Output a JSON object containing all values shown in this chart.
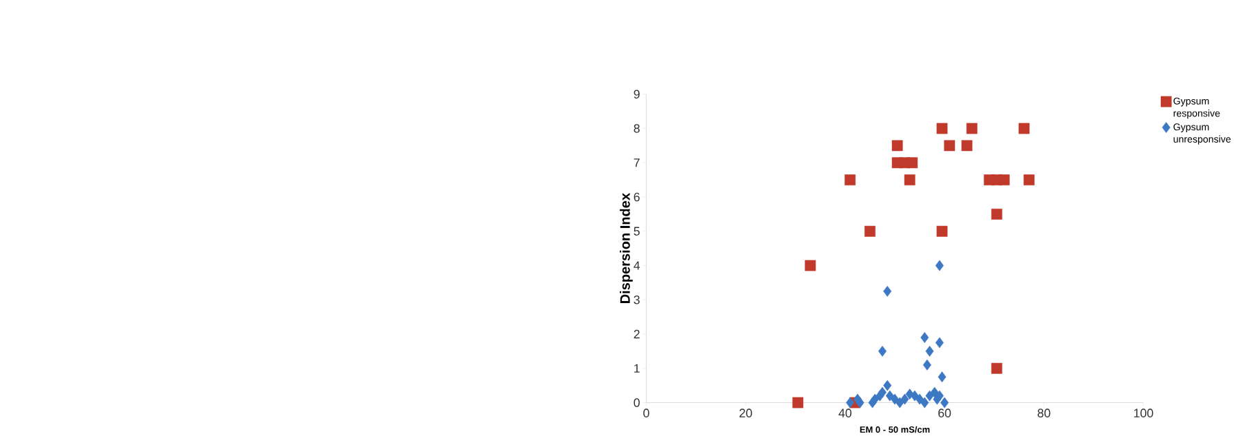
{
  "chart_data": {
    "type": "scatter",
    "xlabel": "EM 0 - 50 mS/cm",
    "ylabel": "Dispersion Index",
    "xlim": [
      0,
      100
    ],
    "xticks": [
      0,
      20,
      40,
      60,
      80,
      100
    ],
    "ylim": [
      0,
      9
    ],
    "yticks": [
      0,
      1,
      2,
      3,
      4,
      5,
      6,
      7,
      8,
      9
    ],
    "grid": false,
    "legend": "right",
    "series": [
      {
        "name": "Gypsum responsive",
        "color": "#c0392b",
        "marker": "square",
        "x": [
          30.5,
          42,
          33,
          41,
          45,
          50.5,
          50.5,
          52,
          53,
          53.5,
          59.5,
          59.5,
          61,
          64.5,
          65.5,
          69,
          70.5,
          72,
          70.5,
          70.5,
          76,
          77
        ],
        "values": [
          0,
          0,
          4,
          6.5,
          5,
          7.5,
          7,
          7,
          6.5,
          7,
          8,
          5,
          7.5,
          7.5,
          8,
          6.5,
          6.5,
          6.5,
          5.5,
          1,
          8,
          6.5
        ]
      },
      {
        "name": "Gypsum unresponsive",
        "color": "#3d78c2",
        "marker": "diamond",
        "x": [
          48.5,
          59,
          47.5,
          56,
          59,
          57,
          56.5,
          59.5,
          41,
          42.5,
          43,
          45.5,
          46,
          47,
          47.5,
          48.5,
          49,
          50,
          51,
          52,
          53,
          54,
          55,
          56,
          57,
          58,
          58.5,
          59,
          60
        ],
        "values": [
          3.25,
          4,
          1.5,
          1.9,
          1.75,
          1.5,
          1.1,
          0.75,
          0,
          0.1,
          0,
          0,
          0.1,
          0.2,
          0.3,
          0.5,
          0.2,
          0.1,
          0,
          0.1,
          0.25,
          0.2,
          0.1,
          0,
          0.2,
          0.3,
          0.1,
          0.2,
          0
        ]
      }
    ]
  }
}
